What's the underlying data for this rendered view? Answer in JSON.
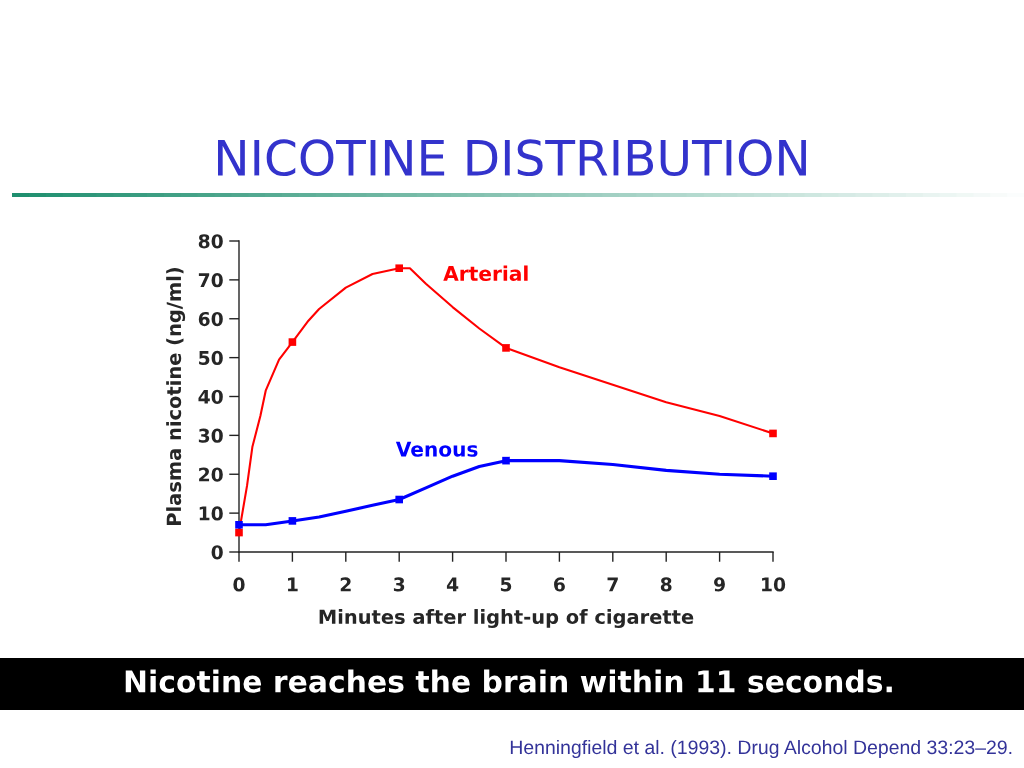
{
  "chart_data": {
    "type": "line",
    "title": "NICOTINE DISTRIBUTION",
    "xlabel": "Minutes after light-up of cigarette",
    "ylabel": "Plasma nicotine (ng/ml)",
    "annotations": [
      "Nicotine reaches the brain within 11 seconds.",
      "Henningfield et al. (1993). Drug Alcohol Depend 33:23–29."
    ],
    "xlim": [
      0,
      10
    ],
    "xticks": [
      0,
      1,
      2,
      3,
      4,
      5,
      6,
      7,
      8,
      9,
      10
    ],
    "ylim": [
      0,
      80
    ],
    "yticks": [
      0,
      10,
      20,
      30,
      40,
      50,
      60,
      70,
      80
    ],
    "series": [
      {
        "name": "Arterial",
        "color": "#ff0000",
        "x": [
          0,
          0.15,
          0.25,
          0.4,
          0.5,
          0.75,
          1,
          1.3,
          1.5,
          2,
          2.5,
          3,
          3.2,
          3.5,
          4,
          4.5,
          5,
          6,
          7,
          8,
          9,
          10
        ],
        "values": [
          5,
          17,
          27,
          35,
          41.5,
          49.5,
          54,
          59.5,
          62.5,
          68,
          71.5,
          73,
          73,
          69,
          63,
          57.5,
          52.5,
          47.5,
          43,
          38.5,
          35,
          30.5
        ]
      },
      {
        "type": "scatter",
        "color": "#ff0000",
        "marker": "square",
        "x": [
          0,
          1,
          3,
          5,
          10
        ],
        "values": [
          5,
          54,
          73,
          52.5,
          30.5
        ]
      },
      {
        "name": "Venous",
        "color": "#0000ff",
        "x": [
          0,
          0.5,
          1,
          1.5,
          2,
          2.5,
          3,
          3.5,
          4,
          4.5,
          5,
          5.5,
          6,
          7,
          8,
          9,
          10
        ],
        "values": [
          7,
          7,
          8,
          9,
          10.5,
          12,
          13.5,
          16.5,
          19.5,
          22,
          23.5,
          23.5,
          23.5,
          22.5,
          21,
          20,
          19.5
        ]
      },
      {
        "type": "scatter",
        "color": "#0000ff",
        "marker": "square",
        "x": [
          0,
          1,
          3,
          5,
          10
        ],
        "values": [
          7,
          8,
          13.5,
          23.5,
          19.5
        ]
      }
    ]
  }
}
